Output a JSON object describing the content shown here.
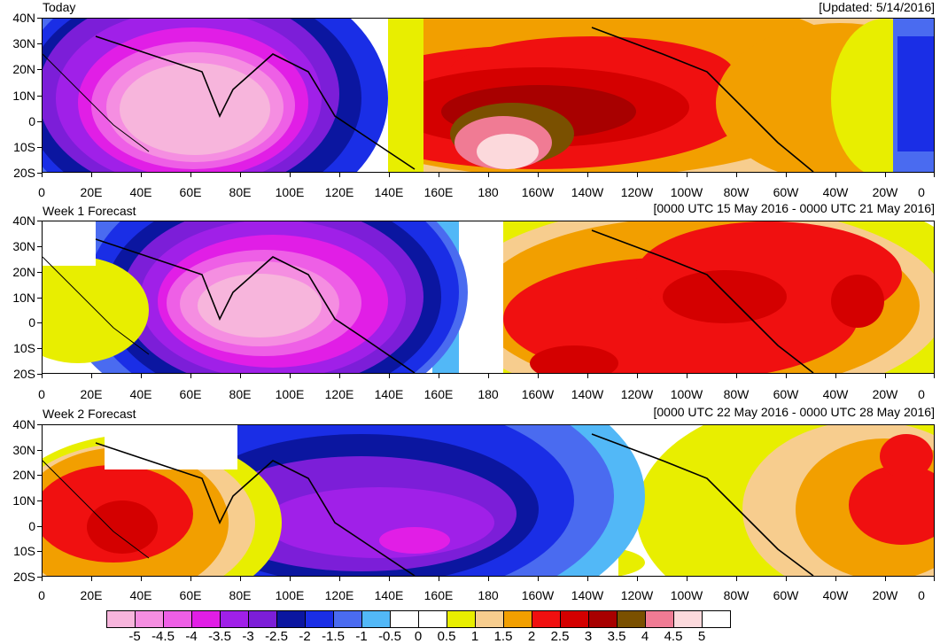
{
  "panels": [
    {
      "title_left": "Today",
      "title_right": "[Updated: 5/14/2016]"
    },
    {
      "title_left": "Week 1 Forecast",
      "title_right": "[0000 UTC 15 May 2016 - 0000 UTC 21 May 2016]"
    },
    {
      "title_left": "Week 2 Forecast",
      "title_right": "[0000 UTC 22 May 2016 - 0000 UTC 28 May 2016]"
    }
  ],
  "lat_labels": [
    "40N",
    "30N",
    "20N",
    "10N",
    "0",
    "10S",
    "20S"
  ],
  "lon_labels": [
    "0",
    "20E",
    "40E",
    "60E",
    "80E",
    "100E",
    "120E",
    "140E",
    "160E",
    "180",
    "160W",
    "140W",
    "120W",
    "100W",
    "80W",
    "60W",
    "40W",
    "20W",
    "0"
  ],
  "colorbar": {
    "labels": [
      "-5",
      "-4.5",
      "-4",
      "-3.5",
      "-3",
      "-2.5",
      "-2",
      "-1.5",
      "-1",
      "-0.5",
      "0",
      "0.5",
      "1",
      "1.5",
      "2",
      "2.5",
      "3",
      "3.5",
      "4",
      "4.5",
      "5"
    ],
    "colors": [
      "#f7b5dc",
      "#f58ee1",
      "#ee5fe6",
      "#e11ee6",
      "#a020e8",
      "#7c1ed8",
      "#0b16a0",
      "#1a2ee6",
      "#4a6bf0",
      "#52b8f7",
      "#ffffff",
      "#ffffff",
      "#e8ee00",
      "#f7cd8e",
      "#f29f00",
      "#f01010",
      "#d40000",
      "#a80000",
      "#7a5000",
      "#f07b94",
      "#fcd9dc",
      "#ffffff"
    ]
  }
}
